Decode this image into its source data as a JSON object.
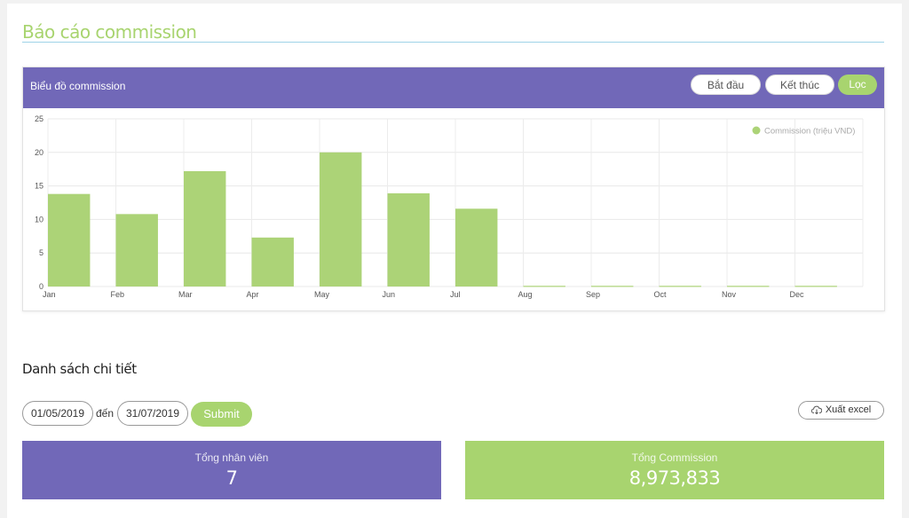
{
  "page": {
    "title": "Báo cáo commission"
  },
  "chart_card": {
    "title": "Biểu đồ commission",
    "buttons": {
      "start": "Bắt đầu",
      "end": "Kết thúc",
      "filter": "Lọc"
    }
  },
  "chart_data": {
    "type": "bar",
    "categories": [
      "Jan",
      "Feb",
      "Mar",
      "Apr",
      "May",
      "Jun",
      "Jul",
      "Aug",
      "Sep",
      "Oct",
      "Nov",
      "Dec"
    ],
    "series": [
      {
        "name": "Commission (triệu VND)",
        "values": [
          13.8,
          10.8,
          17.2,
          7.3,
          20,
          13.9,
          11.6,
          0.1,
          0.1,
          0.1,
          0.1,
          0.1
        ]
      }
    ],
    "ylim": [
      0,
      25
    ],
    "yticks": [
      0,
      5,
      10,
      15,
      20,
      25
    ],
    "grid": true,
    "legend": "top-right",
    "color": "#acd377"
  },
  "details": {
    "title": "Danh sách chi tiết",
    "from_date": "01/05/2019",
    "to_label": "đến",
    "to_date": "31/07/2019",
    "submit": "Submit",
    "export": "Xuất excel"
  },
  "stats": {
    "employees_label": "Tổng nhân viên",
    "employees_value": "7",
    "commission_label": "Tổng Commission",
    "commission_value": "8,973,833"
  },
  "colors": {
    "purple": "#7168b8",
    "green": "#a8d46f"
  }
}
